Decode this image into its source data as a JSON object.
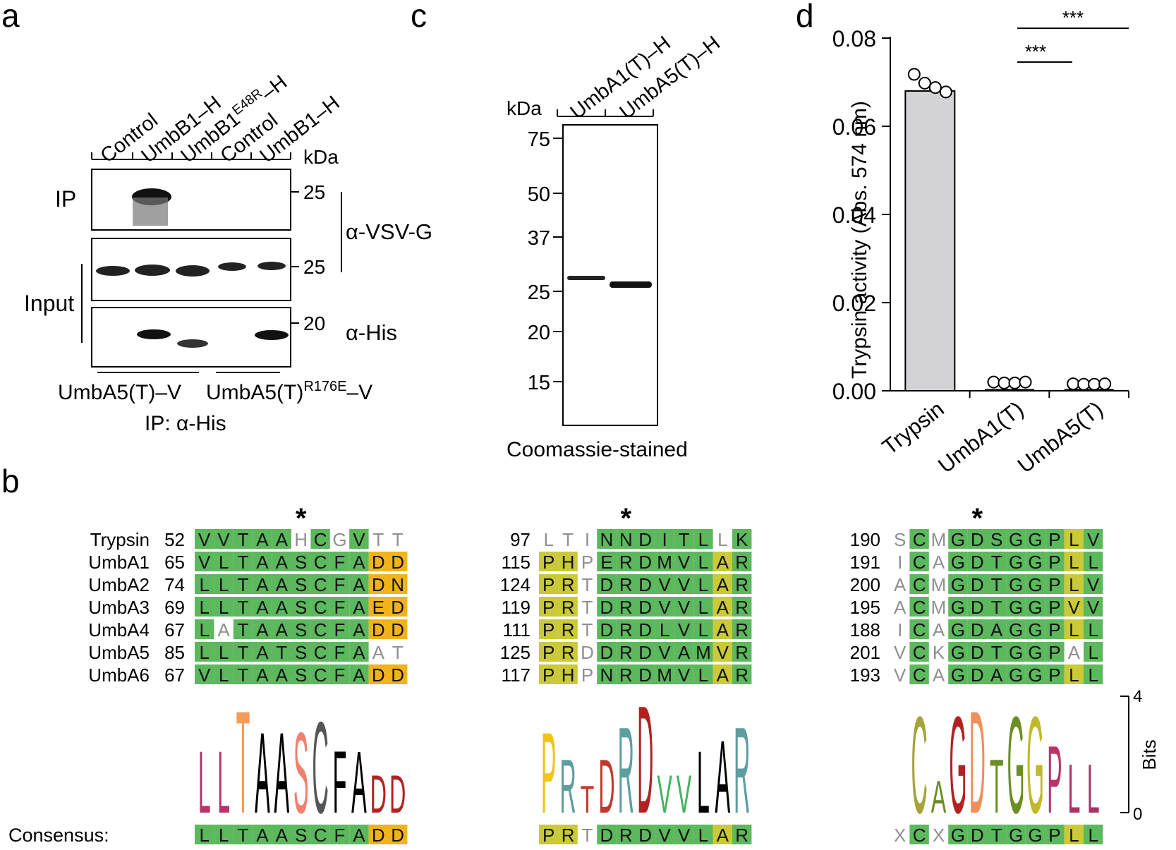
{
  "panel_a": {
    "label": "a",
    "lanes": [
      "Control",
      "UmbB1–H",
      "UmbB1",
      "E48R",
      "–H",
      "Control",
      "UmbB1–H"
    ],
    "kda": "kDa",
    "ip_label": "IP",
    "input_label": "Input",
    "markers": {
      "ip": "25",
      "input_top": "25",
      "input_bottom": "20"
    },
    "antibodies": {
      "vsv": "α-VSV-G",
      "his": "α-His"
    },
    "groups": {
      "left": "UmbA5(T)–V",
      "right_main": "UmbA5(T)",
      "right_sup": "R176E",
      "right_suffix": "–V"
    },
    "ip_footer": "IP: α-His"
  },
  "panel_c": {
    "label": "c",
    "lanes": [
      "UmbA1(T)–H",
      "UmbA5(T)–H"
    ],
    "kda": "kDa",
    "markers": [
      "75",
      "50",
      "37",
      "25",
      "20",
      "15"
    ],
    "caption": "Coomassie-stained"
  },
  "panel_d": {
    "label": "d",
    "significance": [
      "***",
      "***"
    ]
  },
  "chart_data": {
    "type": "bar",
    "categories": [
      "Trypsin",
      "UmbA1(T)",
      "UmbA5(T)"
    ],
    "values": [
      0.068,
      0.0005,
      0.0002
    ],
    "points": [
      [
        0.0705,
        0.0685,
        0.0675,
        0.0665
      ],
      [
        0.0007,
        0.0005,
        0.0005,
        0.0007
      ],
      [
        0.0003,
        0.0002,
        0.0002,
        0.0003
      ]
    ],
    "error": [
      0.0017,
      0.0,
      0.0
    ],
    "ylabel": "Trypsin activity (Abs. 574 nm)",
    "xlabel": "",
    "ylim": [
      0,
      0.08
    ],
    "yticks": [
      "0.00",
      "0.02",
      "0.04",
      "0.06",
      "0.08"
    ],
    "colors": {
      "bar": "#d3d3d6",
      "stroke": "#000000"
    }
  },
  "panel_b": {
    "label": "b",
    "names": [
      "Trypsin",
      "UmbA1",
      "UmbA2",
      "UmbA3",
      "UmbA4",
      "UmbA5",
      "UmbA6"
    ],
    "consensus_label": "Consensus:",
    "star": "*",
    "bits_label": "Bits",
    "bits_ticks": [
      "4",
      "0"
    ],
    "colors": {
      "green": "#5cb85c",
      "yellow": "#c9c93a",
      "orange": "#f0b31c",
      "gray": "#909090"
    },
    "blocks": [
      {
        "starts": [
          "52",
          "65",
          "74",
          "69",
          "67",
          "85",
          "67"
        ],
        "rows": [
          "VVTAAHCGVTT",
          "VLTAASCFADD",
          "LLTAASCFADN",
          "LLTAASCFAED",
          "LATAASCFADD",
          "LLTATSCFAAT",
          "VLTAASCFADD"
        ],
        "shading": [
          "GGGGGNGNGNN",
          "GGGGGGGGGOO",
          "GGGGGGGGGOO",
          "GGGGGGGGGOO",
          "GNGGGGGGGOO",
          "GGGGGGGGGNN",
          "GGGGGGGGGOO"
        ],
        "consensus": "LLTAASCFADD",
        "consensus_shading": "GGGGGGGGGOO",
        "logo": "LLTAASCFADD"
      },
      {
        "starts": [
          "97",
          "115",
          "124",
          "119",
          "111",
          "125",
          "117"
        ],
        "rows": [
          "LTINNDITLLK",
          "PHPERDMVLAR",
          "PRTDRDVVLAR",
          "PRTDRDVVLAR",
          "PRTDRDLVLAR",
          "PRDDRDVAMVR",
          "PHPNRDMVLAR"
        ],
        "shading": [
          "NNNGGGGGGNG",
          "YYNGGGGGGYG",
          "YYNGGGGGGYG",
          "YYNGGGGGGYG",
          "YYNGGGGGGYG",
          "YYNGGGGGGYG",
          "YYNGGGGGGYG"
        ],
        "consensus": "PRTDRDVVLAR",
        "consensus_shading": "YYNGGGGGGYG",
        "logo": "PRTDRDVVLAR"
      },
      {
        "starts": [
          "190",
          "191",
          "200",
          "195",
          "188",
          "201",
          "193"
        ],
        "rows": [
          "SCMGDSGGPLV",
          "ICAGDTGGPLL",
          "ACMGDTGGPLV",
          "ACMGDTGGPVV",
          "ICAGDAGGPLL",
          "VCKGDTGGPAL",
          "VCAGDAGGPLL"
        ],
        "shading": [
          "NGNGGGGGGYG",
          "NGNGGGGGGYG",
          "NGNGGGGGGYG",
          "NGNGGGGGGYG",
          "NGNGGGGGGYG",
          "NGNGGGGGGNG",
          "NGNGGGGGGYG"
        ],
        "consensus": "XCXGDTGGPLL",
        "consensus_shading": "NGNGGGGGGYG",
        "logo": "CAGDTGGPLL"
      }
    ]
  }
}
